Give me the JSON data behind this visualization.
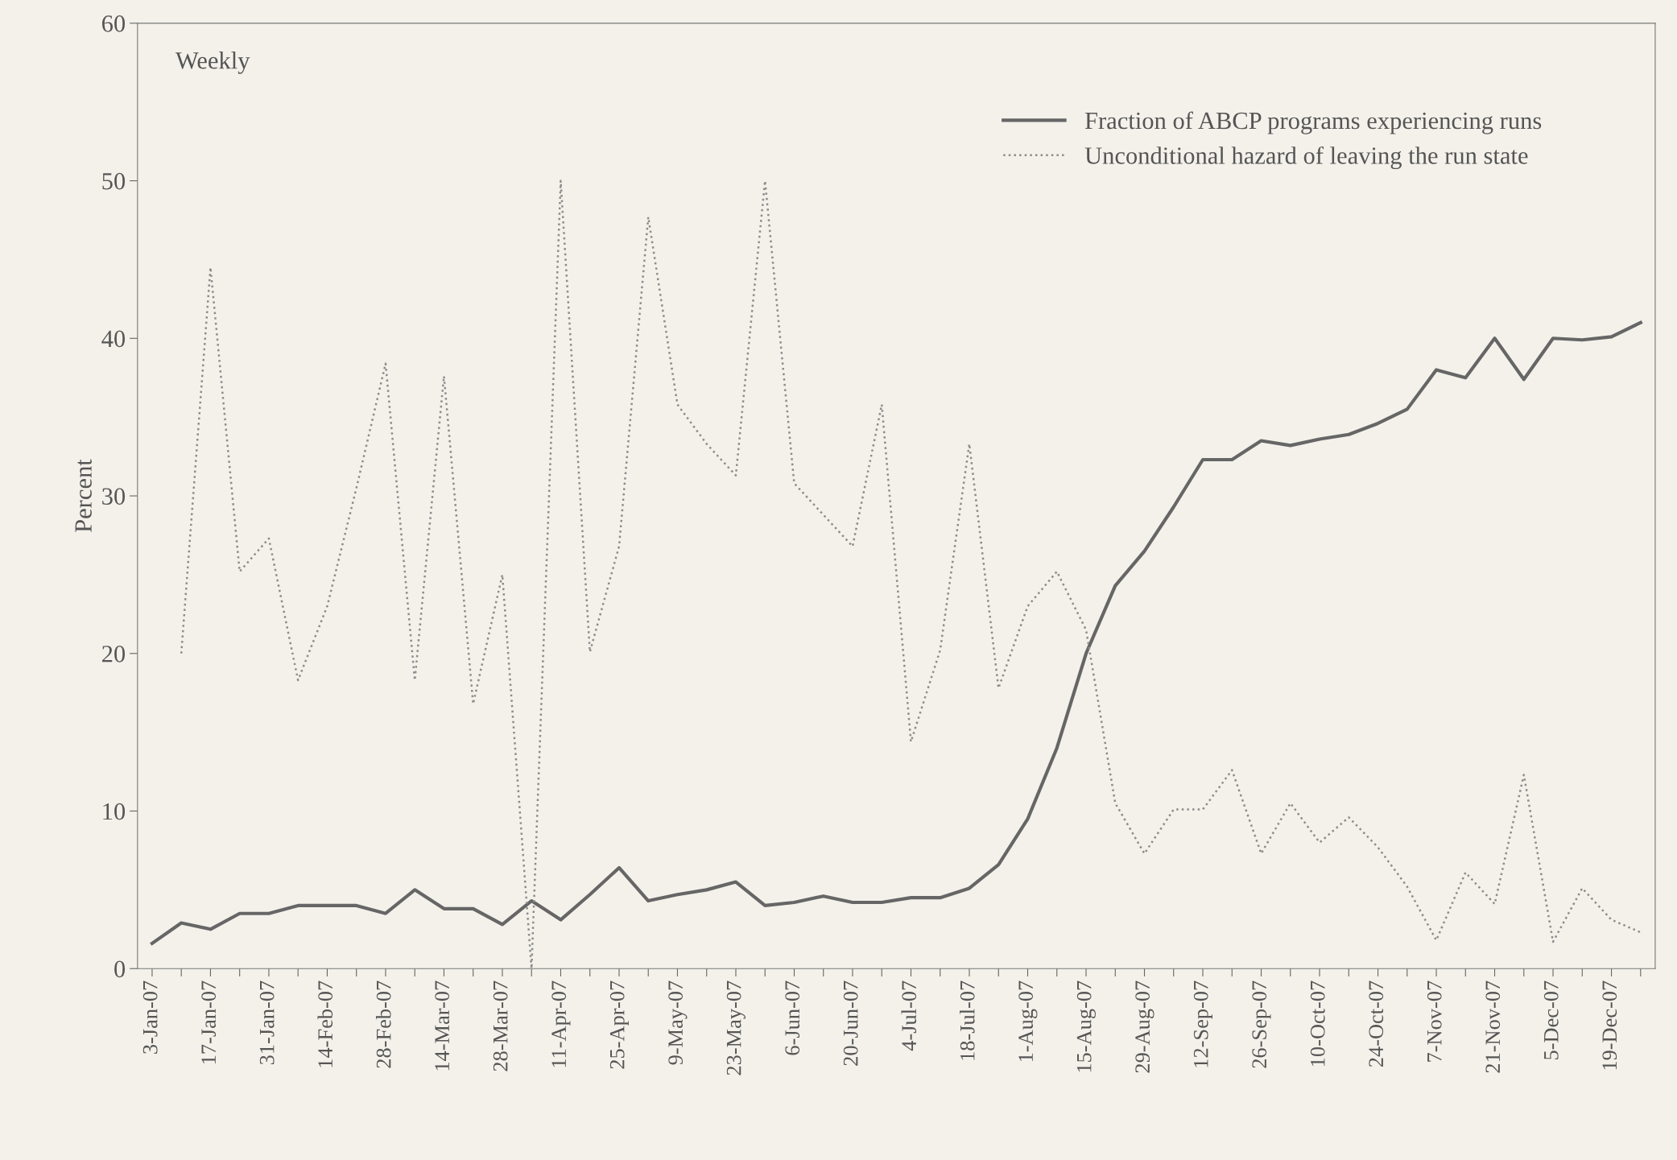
{
  "chart_data": {
    "type": "line",
    "ylabel": "Percent",
    "categories": [
      "3-Jan-07",
      null,
      "17-Jan-07",
      null,
      "31-Jan-07",
      null,
      "14-Feb-07",
      null,
      "28-Feb-07",
      null,
      "14-Mar-07",
      null,
      "28-Mar-07",
      null,
      "11-Apr-07",
      null,
      "25-Apr-07",
      null,
      "9-May-07",
      null,
      "23-May-07",
      null,
      "6-Jun-07",
      null,
      "20-Jun-07",
      null,
      "4-Jul-07",
      null,
      "18-Jul-07",
      null,
      "1-Aug-07",
      null,
      "15-Aug-07",
      null,
      "29-Aug-07",
      null,
      "12-Sep-07",
      null,
      "26-Sep-07",
      null,
      "10-Oct-07",
      null,
      "24-Oct-07",
      null,
      "7-Nov-07",
      null,
      "21-Nov-07",
      null,
      "5-Dec-07",
      null,
      "19-Dec-07",
      null
    ],
    "series": [
      {
        "name": "Fraction of ABCP programs experiencing runs",
        "color": "#666666",
        "line_style": "solid",
        "values": [
          1.6,
          2.9,
          2.5,
          3.5,
          3.5,
          4.0,
          4.0,
          4.0,
          3.5,
          5.0,
          3.8,
          3.8,
          2.8,
          4.3,
          3.1,
          4.7,
          6.4,
          4.3,
          4.7,
          5.0,
          5.5,
          4.0,
          4.2,
          4.6,
          4.2,
          4.2,
          4.5,
          4.5,
          5.1,
          6.6,
          9.5,
          14.0,
          20.0,
          24.3,
          26.5,
          29.3,
          32.3,
          32.3,
          33.5,
          33.2,
          33.6,
          33.9,
          34.6,
          35.5,
          38.0,
          37.5,
          40.0,
          37.4,
          40.0,
          39.9,
          40.1,
          41.0
        ]
      },
      {
        "name": "Unconditional hazard of leaving the run state",
        "color": "#8c8c8c",
        "line_style": "dotted",
        "values": [
          null,
          20.0,
          44.5,
          25.2,
          27.3,
          18.3,
          23.0,
          30.5,
          38.4,
          18.3,
          37.6,
          16.8,
          25.0,
          0.0,
          50.0,
          20.1,
          26.8,
          47.7,
          35.8,
          33.3,
          31.3,
          50.0,
          30.8,
          28.8,
          26.8,
          35.8,
          14.4,
          20.2,
          33.3,
          17.8,
          23.0,
          25.2,
          21.5,
          10.5,
          7.3,
          10.1,
          10.1,
          12.6,
          7.3,
          10.5,
          8.0,
          9.6,
          7.7,
          5.2,
          1.8,
          6.1,
          4.1,
          12.3,
          1.7,
          5.1,
          3.1,
          2.3
        ]
      }
    ],
    "ylim": [
      0,
      60
    ],
    "yticks": [
      0,
      10,
      20,
      30,
      40,
      50,
      60
    ],
    "annotations": [
      "Weekly"
    ],
    "legend": "top right",
    "grid": false
  }
}
